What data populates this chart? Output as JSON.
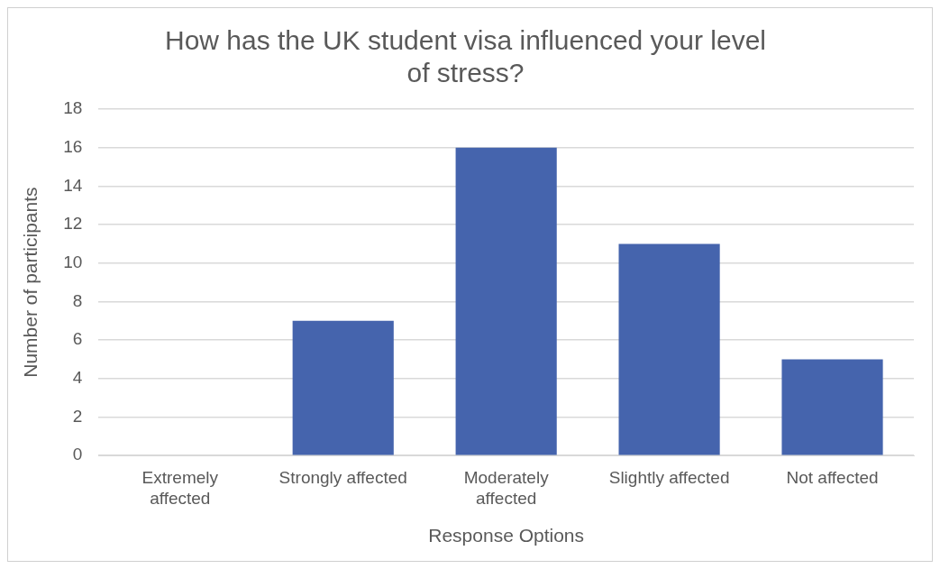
{
  "chart_data": {
    "type": "bar",
    "title": "How has the UK student visa influenced your level of stress?",
    "xlabel": "Response Options",
    "ylabel": "Number of participants",
    "categories": [
      "Extremely affected",
      "Strongly affected",
      "Moderately affected",
      "Slightly affected",
      "Not affected"
    ],
    "values": [
      0,
      7,
      16,
      11,
      5
    ],
    "color": "#4564ad",
    "ylim": [
      0,
      18
    ],
    "yticks": [
      0,
      2,
      4,
      6,
      8,
      10,
      12,
      14,
      16,
      18
    ],
    "grid": "y",
    "legend": false
  }
}
